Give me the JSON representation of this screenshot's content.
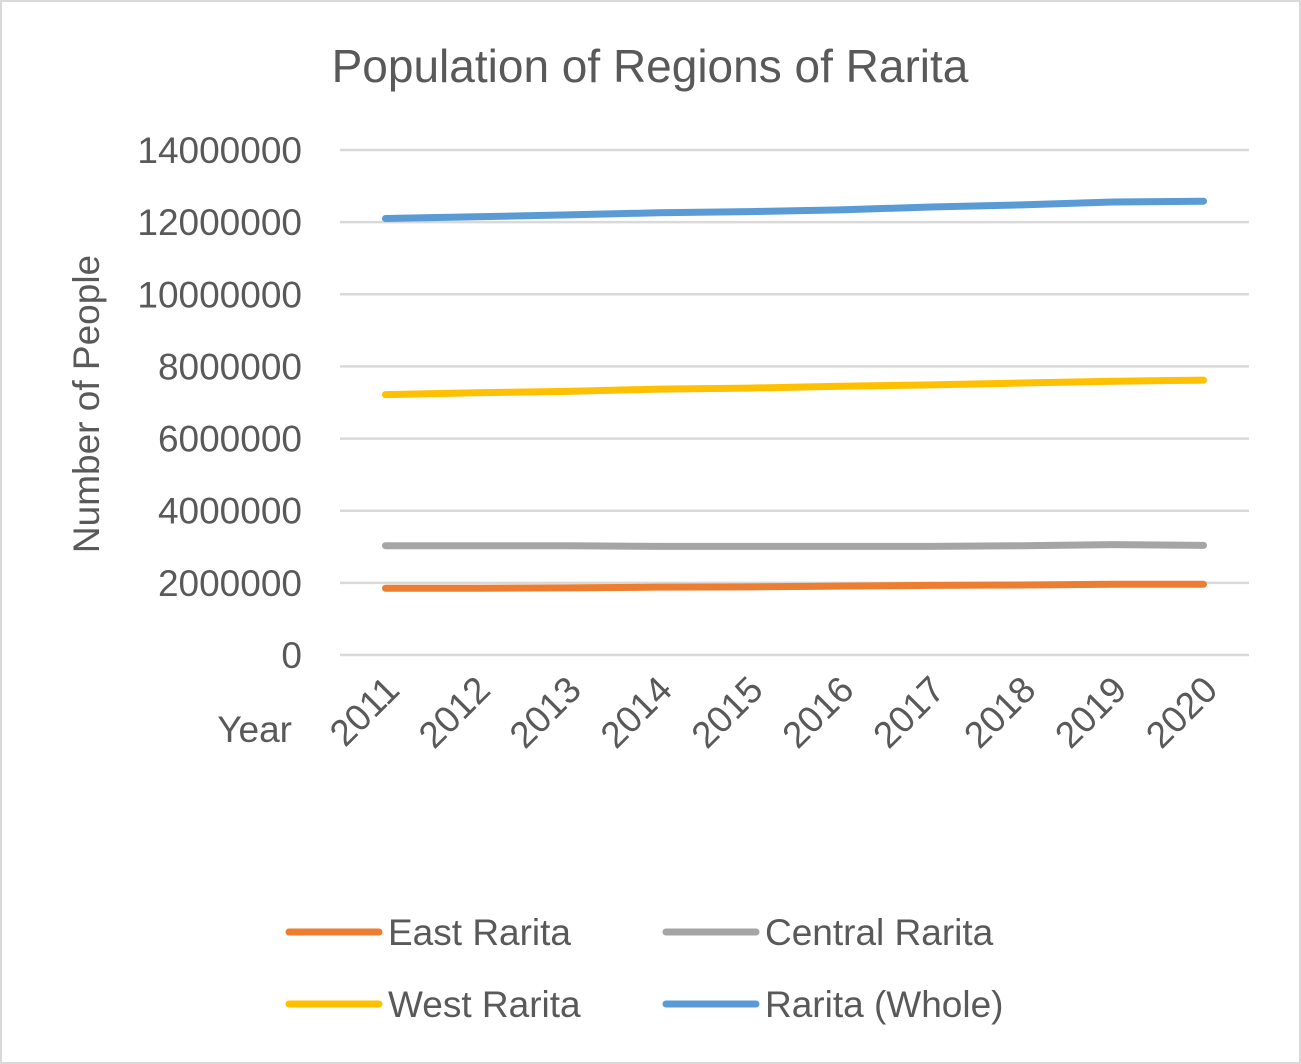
{
  "chart_data": {
    "type": "line",
    "title": "Population of Regions of Rarita",
    "xlabel": "Year",
    "ylabel": "Number of People",
    "x": [
      "2011",
      "2012",
      "2013",
      "2014",
      "2015",
      "2016",
      "2017",
      "2018",
      "2019",
      "2020"
    ],
    "ylim": [
      0,
      14000000
    ],
    "y_ticks": [
      "0",
      "2000000",
      "4000000",
      "6000000",
      "8000000",
      "10000000",
      "12000000",
      "14000000"
    ],
    "grid": "horizontal",
    "legend_position": "bottom",
    "series": [
      {
        "name": "East Rarita",
        "color": "#ed7d31",
        "values": [
          1850000,
          1850000,
          1860000,
          1880000,
          1890000,
          1910000,
          1930000,
          1940000,
          1960000,
          1960000
        ]
      },
      {
        "name": "Central Rarita",
        "color": "#a5a5a5",
        "values": [
          3030000,
          3030000,
          3030000,
          3010000,
          3010000,
          3010000,
          3010000,
          3030000,
          3060000,
          3040000
        ]
      },
      {
        "name": "West Rarita",
        "color": "#ffc000",
        "values": [
          7220000,
          7270000,
          7310000,
          7370000,
          7400000,
          7450000,
          7490000,
          7540000,
          7590000,
          7620000
        ]
      },
      {
        "name": "Rarita (Whole)",
        "color": "#5b9bd5",
        "values": [
          12100000,
          12150000,
          12200000,
          12260000,
          12290000,
          12340000,
          12420000,
          12480000,
          12560000,
          12580000
        ]
      }
    ]
  }
}
